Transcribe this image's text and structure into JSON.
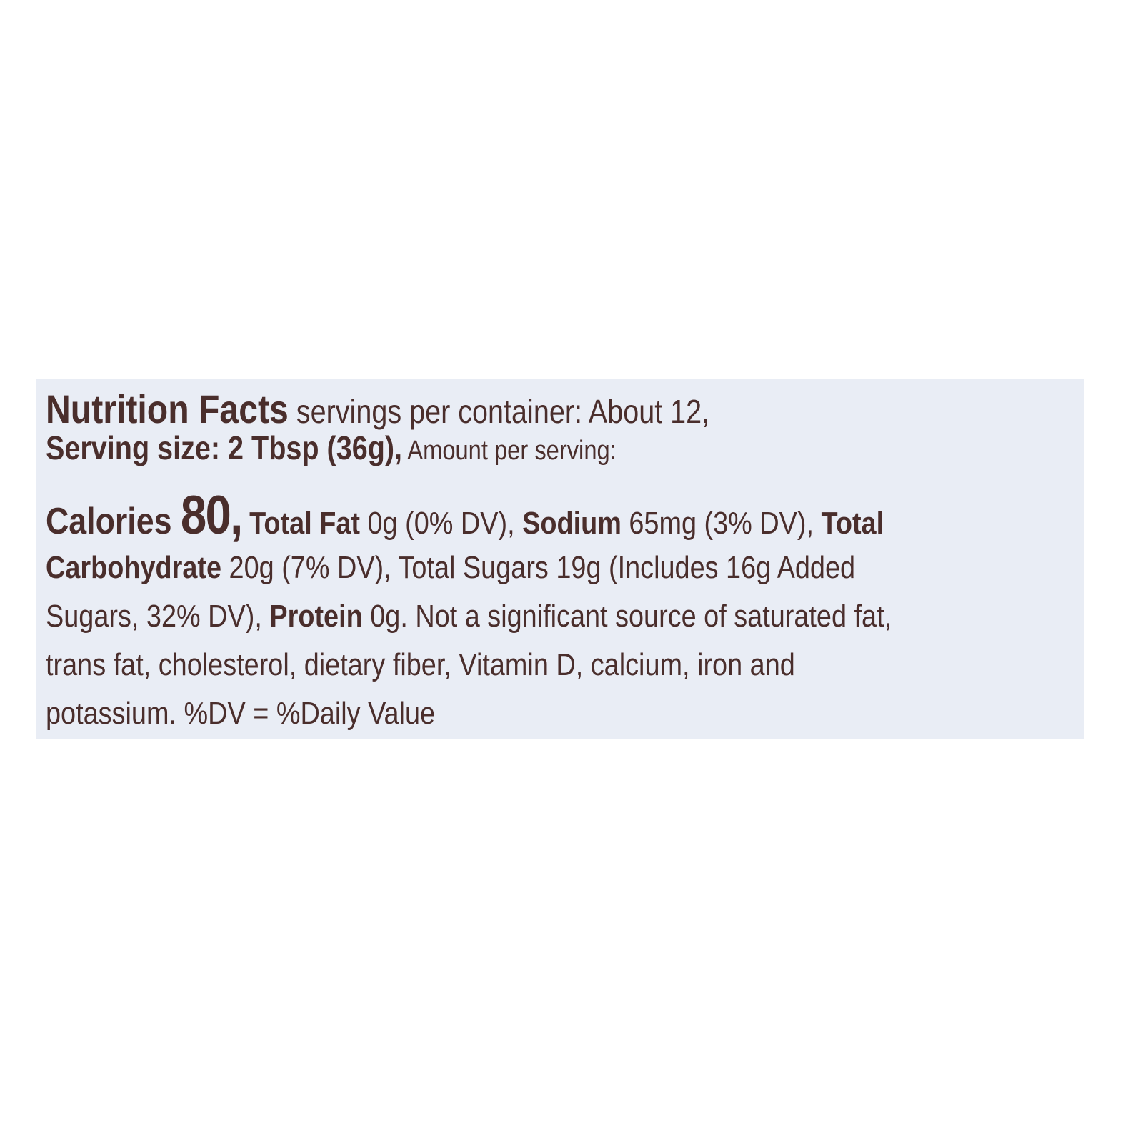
{
  "label": {
    "title": "Nutrition Facts",
    "servings_per_container": " servings per container: About 12,",
    "serving_size": "Serving size: 2 Tbsp (36g),",
    "amount_per_serving": " Amount per serving:",
    "calories_label": "Calories ",
    "calories_value": "80,",
    "total_fat_label": " Total Fat",
    "total_fat_value": " 0g (0% DV), ",
    "sodium_label": "Sodium",
    "sodium_value": " 65mg (3% DV), ",
    "total_carb_label_1": "Total",
    "total_carb_label_2": "Carbohydrate",
    "line4_rest": " 20g (7% DV), Total Sugars 19g (Includes 16g Added",
    "line5_start": "Sugars, 32% DV), ",
    "protein_label": "Protein",
    "line5_rest": " 0g. Not a significant source of saturated fat,",
    "line6": "trans fat, cholesterol, dietary fiber, Vitamin D, calcium, iron and",
    "line7": "potassium. %DV = %Daily Value"
  },
  "colors": {
    "text": "#4a2e2c",
    "panel": "#e9edf5",
    "background": "#ffffff"
  }
}
